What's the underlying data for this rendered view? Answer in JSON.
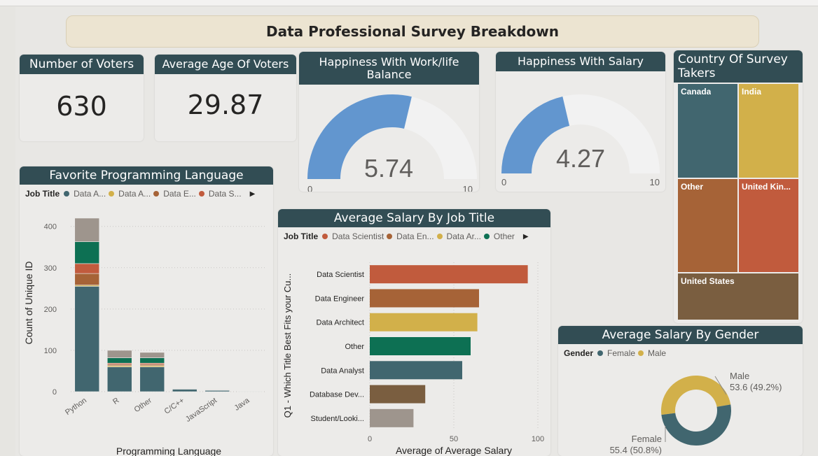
{
  "dashboard": {
    "title": "Data Professional Survey Breakdown"
  },
  "kpi_voters": {
    "title": "Number of Voters",
    "value": "630"
  },
  "kpi_age": {
    "title": "Average Age Of Voters",
    "value": "29.87"
  },
  "gauge_wlb": {
    "title": "Happiness With Work/life Balance",
    "value": 5.74,
    "value_label": "5.74",
    "min_label": "0",
    "max_label": "10",
    "max": 10,
    "fill_color": "#6296cf",
    "track_color": "#f2f2f2"
  },
  "gauge_salary": {
    "title": "Happiness With Salary",
    "value": 4.27,
    "value_label": "4.27",
    "min_label": "0",
    "max_label": "10",
    "max": 10,
    "fill_color": "#6296cf",
    "track_color": "#f2f2f2"
  },
  "country": {
    "title": "Country Of Survey Takers",
    "cells": [
      {
        "label": "Canada",
        "color": "#41666f"
      },
      {
        "label": "India",
        "color": "#d2b04a"
      },
      {
        "label": "Other",
        "color": "#a66337"
      },
      {
        "label": "United Kin...",
        "color": "#c15b3d"
      },
      {
        "label": "United States",
        "color": "#7a5e40"
      }
    ]
  },
  "lang_chart": {
    "title": "Favorite Programming Language",
    "legend_title": "Job Title",
    "legend_items": [
      {
        "label": "Data A...",
        "color": "#41666f"
      },
      {
        "label": "Data A...",
        "color": "#d2b04a"
      },
      {
        "label": "Data E...",
        "color": "#a66337"
      },
      {
        "label": "Data S...",
        "color": "#c15b3d"
      }
    ],
    "legend_more": "▶"
  },
  "salary_job": {
    "title": "Average Salary By Job Title",
    "legend_title": "Job Title",
    "legend_items": [
      {
        "label": "Data Scientist",
        "color": "#c15b3d"
      },
      {
        "label": "Data En...",
        "color": "#a66337"
      },
      {
        "label": "Data Ar...",
        "color": "#d2b04a"
      },
      {
        "label": "Other",
        "color": "#0d7053"
      }
    ],
    "legend_more": "▶"
  },
  "salary_gender": {
    "title": "Average Salary By Gender",
    "legend_title": "Gender",
    "legend_items": [
      {
        "label": "Female",
        "color": "#41666f"
      },
      {
        "label": "Male",
        "color": "#d2b04a"
      }
    ]
  },
  "chart_data": [
    {
      "type": "bar",
      "stacked": true,
      "title": "Favorite Programming Language",
      "xlabel": "Programming Language",
      "ylabel": "Count of Unique ID",
      "ylim": [
        0,
        430
      ],
      "yticks": [
        0,
        100,
        200,
        300,
        400
      ],
      "categories": [
        "Python",
        "R",
        "Other",
        "C/C++",
        "JavaScript",
        "Java"
      ],
      "grid": true,
      "legend": "top",
      "series": [
        {
          "name": "Data A...",
          "color": "#41666f",
          "values": [
            255,
            60,
            60,
            6,
            3,
            1
          ]
        },
        {
          "name": "Data A...",
          "color": "#d2b04a",
          "values": [
            3,
            3,
            3,
            0,
            1,
            0
          ]
        },
        {
          "name": "Data E...",
          "color": "#a66337",
          "values": [
            28,
            3,
            3,
            0,
            1,
            0
          ]
        },
        {
          "name": "Data S...",
          "color": "#c15b3d",
          "values": [
            24,
            3,
            3,
            0,
            0,
            0
          ]
        },
        {
          "color": "#0d7053",
          "values": [
            53,
            13,
            13,
            1,
            1,
            0
          ]
        },
        {
          "color": "#9e958d",
          "values": [
            57,
            18,
            13,
            0,
            1,
            0
          ]
        }
      ]
    },
    {
      "type": "bar",
      "orientation": "horizontal",
      "title": "Average Salary By Job Title",
      "xlabel": "Average of Average Salary",
      "ylabel": "Q1 - Which Title Best Fits your Cu...",
      "xlim": [
        0,
        100
      ],
      "xticks": [
        0,
        50,
        100
      ],
      "categories": [
        "Data Scientist",
        "Data Engineer",
        "Data Architect",
        "Other",
        "Data Analyst",
        "Database Dev...",
        "Student/Looki..."
      ],
      "values": [
        94,
        65,
        64,
        60,
        55,
        33,
        26
      ],
      "colors": [
        "#c15b3d",
        "#a66337",
        "#d2b04a",
        "#0d7053",
        "#41666f",
        "#7a5e40",
        "#9e958d"
      ],
      "grid": true,
      "legend": "top"
    },
    {
      "type": "pie",
      "donut": true,
      "title": "Average Salary By Gender",
      "categories": [
        "Male",
        "Female"
      ],
      "values": [
        53.6,
        55.4
      ],
      "data_labels": [
        "53.6 (49.2%)",
        "55.4 (50.8%)"
      ],
      "colors": [
        "#d2b04a",
        "#41666f"
      ],
      "legend": "top-left"
    }
  ]
}
